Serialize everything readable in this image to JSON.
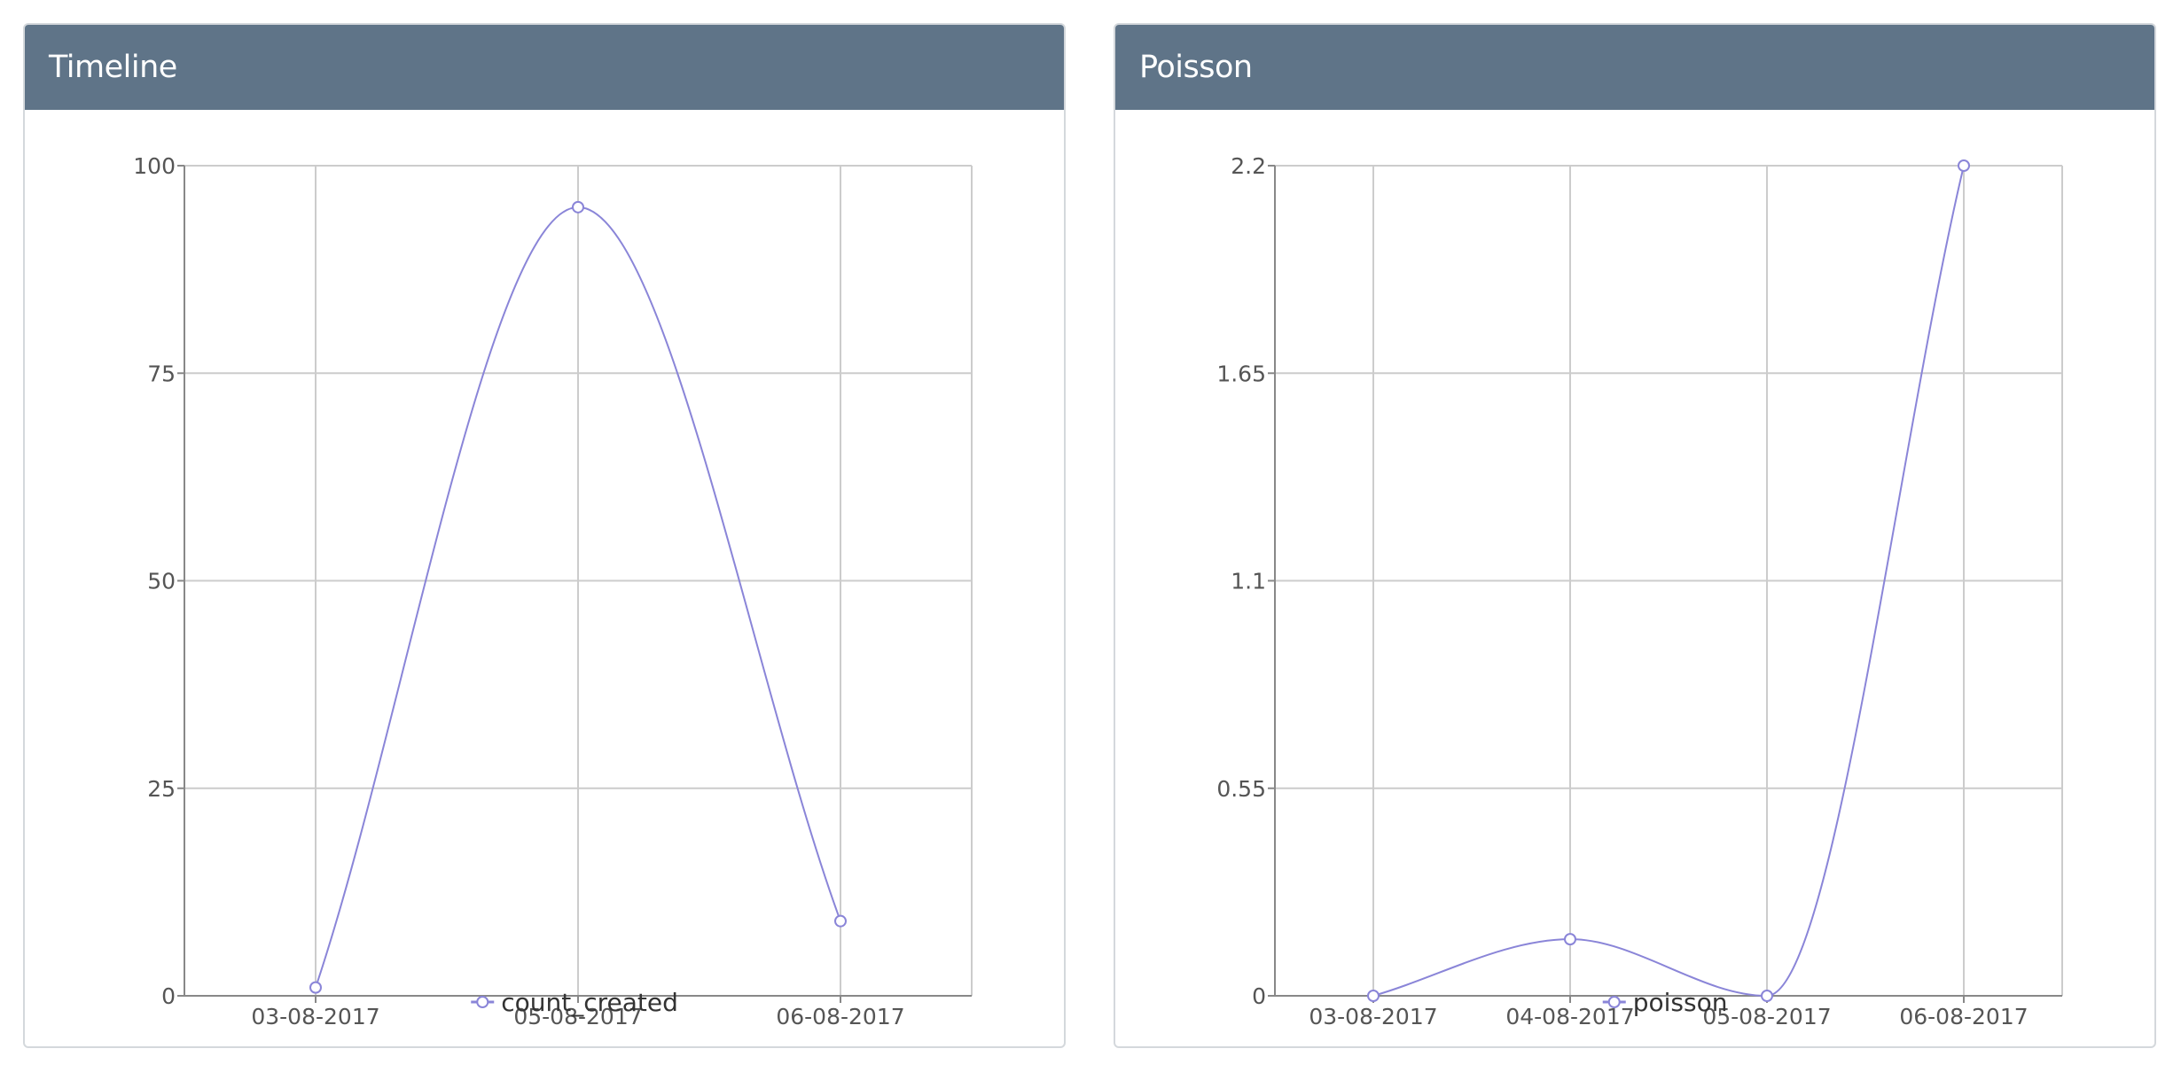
{
  "panels": [
    {
      "title": "Timeline"
    },
    {
      "title": "Poisson"
    }
  ],
  "chart_data": [
    {
      "type": "line",
      "title": "Timeline",
      "categories": [
        "03-08-2017",
        "05-08-2017",
        "06-08-2017"
      ],
      "series": [
        {
          "name": "count_created",
          "values": [
            1,
            95,
            9
          ],
          "color": "#8a85d8"
        }
      ],
      "yticks": [
        "0",
        "25",
        "50",
        "75",
        "100"
      ],
      "ylim": [
        0,
        100
      ],
      "grid": true,
      "legend": "bottom",
      "smooth": true
    },
    {
      "type": "line",
      "title": "Poisson",
      "categories": [
        "03-08-2017",
        "04-08-2017",
        "05-08-2017",
        "06-08-2017"
      ],
      "series": [
        {
          "name": "poisson",
          "values": [
            0,
            0.15,
            0,
            2.2
          ],
          "color": "#8a85d8"
        }
      ],
      "yticks": [
        "0",
        "0.55",
        "1.1",
        "1.65",
        "2.2"
      ],
      "ylim": [
        0,
        2.2
      ],
      "grid": true,
      "legend": "bottom",
      "smooth": true
    }
  ],
  "colors": {
    "header_bg": "#5f7488",
    "grid": "#cccccc",
    "series": "#8a85d8"
  }
}
